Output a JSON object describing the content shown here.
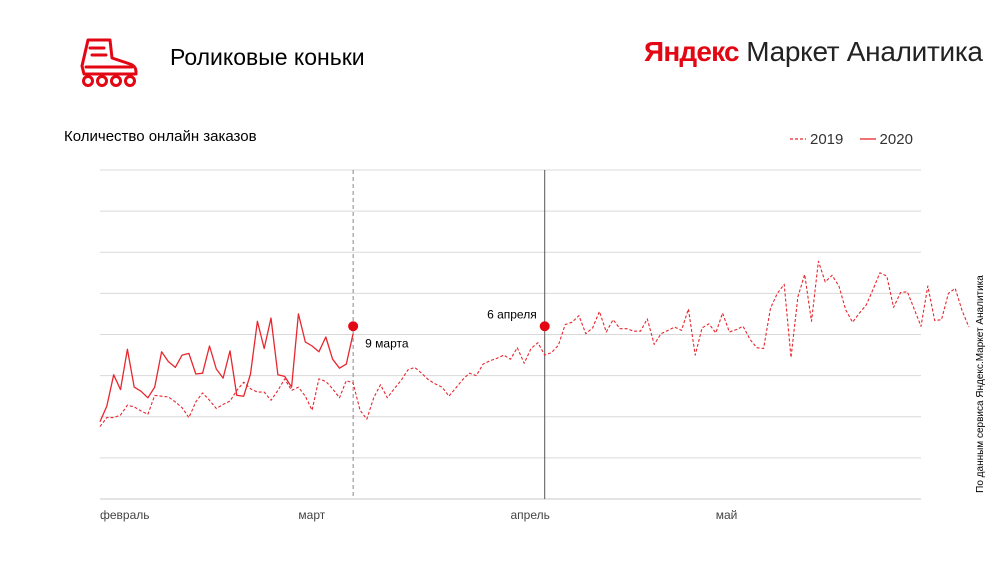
{
  "header": {
    "title": "Роликовые коньки",
    "logo_icon": "roller-skate-icon",
    "brand_yandex": "Яндекс",
    "brand_rest": " Маркет Аналитика"
  },
  "colors": {
    "accent": "#e30613",
    "line": "#e8262e",
    "grid": "#d9d9d9"
  },
  "source_note": "По данным сервиса Яндекс.Маркет Аналитика",
  "chart_data": {
    "type": "line",
    "title": "Количество онлайн заказов",
    "xlabel": "",
    "ylabel": "",
    "x_start": "2020-02-01",
    "x_end": "2020-05-31",
    "x_ticks": [
      {
        "date": "2020-02-01",
        "label": "февраль"
      },
      {
        "date": "2020-03-01",
        "label": "март"
      },
      {
        "date": "2020-04-01",
        "label": "апрель"
      },
      {
        "date": "2020-05-01",
        "label": "май"
      }
    ],
    "grid": true,
    "legend": "top-right",
    "series": [
      {
        "name": "2019",
        "style": "dashed",
        "start": "2020-02-01",
        "values": [
          8.8,
          9.9,
          9.9,
          10.2,
          11.4,
          11.2,
          10.7,
          10.3,
          12.6,
          12.5,
          12.4,
          11.8,
          11.1,
          9.9,
          11.8,
          12.9,
          12.0,
          11.0,
          11.5,
          11.9,
          13.2,
          14.2,
          13.4,
          13.0,
          13.0,
          12.0,
          13.2,
          14.6,
          13.2,
          13.6,
          12.5,
          10.8,
          14.6,
          14.3,
          13.4,
          12.3,
          14.4,
          14.1,
          10.8,
          9.7,
          12.3,
          13.9,
          12.3,
          13.4,
          14.4,
          15.7,
          16.0,
          15.3,
          14.5,
          14.0,
          13.6,
          12.5,
          13.5,
          14.5,
          15.3,
          15.0,
          16.4,
          16.8,
          17.1,
          17.5,
          17.0,
          18.4,
          16.5,
          18.3,
          19.0,
          17.5,
          17.8,
          18.7,
          21.2,
          21.5,
          22.3,
          20.1,
          20.8,
          22.8,
          20.3,
          21.8,
          20.7,
          20.7,
          20.4,
          20.4,
          21.9,
          18.8,
          20.1,
          20.5,
          20.9,
          20.5,
          23.1,
          17.5,
          20.8,
          21.3,
          20.2,
          22.6,
          20.3,
          20.6,
          21.0,
          19.4,
          18.4,
          18.3,
          23.2,
          25.0,
          26.1,
          17.2,
          24.6,
          27.3,
          21.6,
          28.9,
          26.4,
          27.2,
          25.9,
          23.0,
          21.5,
          22.6,
          23.6,
          25.5,
          27.5,
          27.1,
          23.3,
          25.1,
          25.2,
          23.1,
          21.0,
          25.9,
          21.7,
          21.8,
          25.0,
          25.6,
          22.9,
          20.9
        ]
      },
      {
        "name": "2020",
        "style": "solid",
        "start": "2020-02-01",
        "values": [
          9.4,
          11.3,
          15.1,
          13.3,
          18.2,
          13.6,
          13.1,
          12.3,
          13.6,
          17.9,
          16.7,
          16.0,
          17.5,
          17.7,
          15.2,
          15.3,
          18.6,
          15.8,
          14.7,
          18.0,
          12.6,
          12.5,
          15.2,
          21.6,
          18.3,
          22.0,
          15.1,
          14.9,
          13.6,
          22.5,
          19.1,
          18.6,
          17.9,
          19.7,
          17.0,
          15.9,
          16.4,
          20.1
        ]
      }
    ],
    "annotations": [
      {
        "date": "2020-03-09",
        "label": "9 марта",
        "value": 21.0,
        "line": "dashed"
      },
      {
        "date": "2020-04-06",
        "label": "6 апреля",
        "value": 21.0,
        "line": "solid"
      }
    ]
  }
}
